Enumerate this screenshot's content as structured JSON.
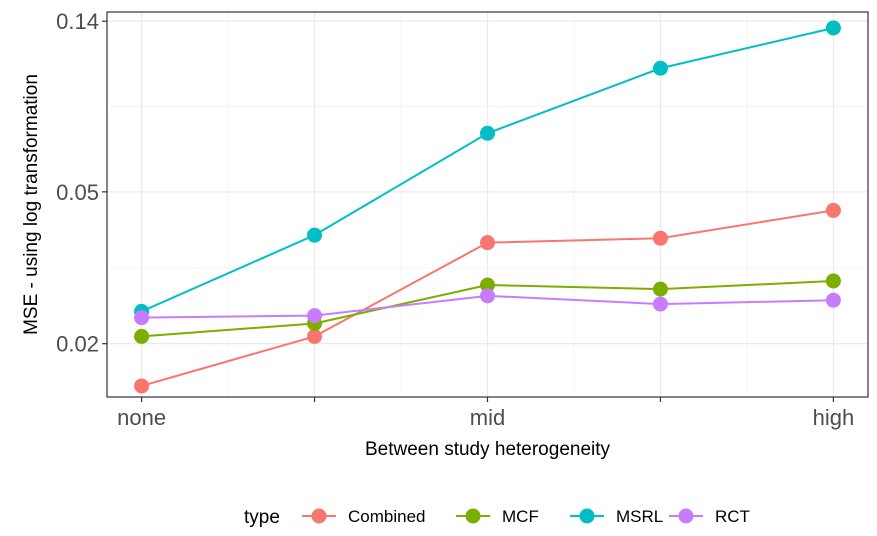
{
  "chart_data": {
    "type": "line",
    "xlabel": "Between study heterogeneity",
    "ylabel": "MSE - using log transformation",
    "x_positions": [
      1,
      2,
      3,
      4,
      5
    ],
    "x_tick_labels": [
      {
        "pos": 1,
        "label": "none"
      },
      {
        "pos": 2,
        "label": ""
      },
      {
        "pos": 3,
        "label": "mid"
      },
      {
        "pos": 4,
        "label": ""
      },
      {
        "pos": 5,
        "label": "high"
      }
    ],
    "xlim": [
      0.8,
      5.2
    ],
    "y_scale": "log",
    "ylim": [
      0.0145,
      0.148
    ],
    "y_ticks": [
      {
        "value": 0.02,
        "label": "0.02"
      },
      {
        "value": 0.05,
        "label": "0.05"
      },
      {
        "value": 0.14,
        "label": "0.14"
      }
    ],
    "y_minor_ticks": [
      0.0316,
      0.0837
    ],
    "grid": true,
    "legend": {
      "title": "type",
      "position": "bottom"
    },
    "series": [
      {
        "name": "Combined",
        "color": "#F8766D",
        "values": [
          0.0155,
          0.0209,
          0.0368,
          0.0378,
          0.0447
        ]
      },
      {
        "name": "MCF",
        "color": "#7CAE00",
        "values": [
          0.0209,
          0.0226,
          0.0285,
          0.0278,
          0.0292
        ]
      },
      {
        "name": "MSRL",
        "color": "#00BFC4",
        "values": [
          0.0243,
          0.0385,
          0.0712,
          0.1054,
          0.1344
        ]
      },
      {
        "name": "RCT",
        "color": "#C77CFF",
        "values": [
          0.0234,
          0.0237,
          0.0267,
          0.0254,
          0.026
        ]
      }
    ]
  }
}
